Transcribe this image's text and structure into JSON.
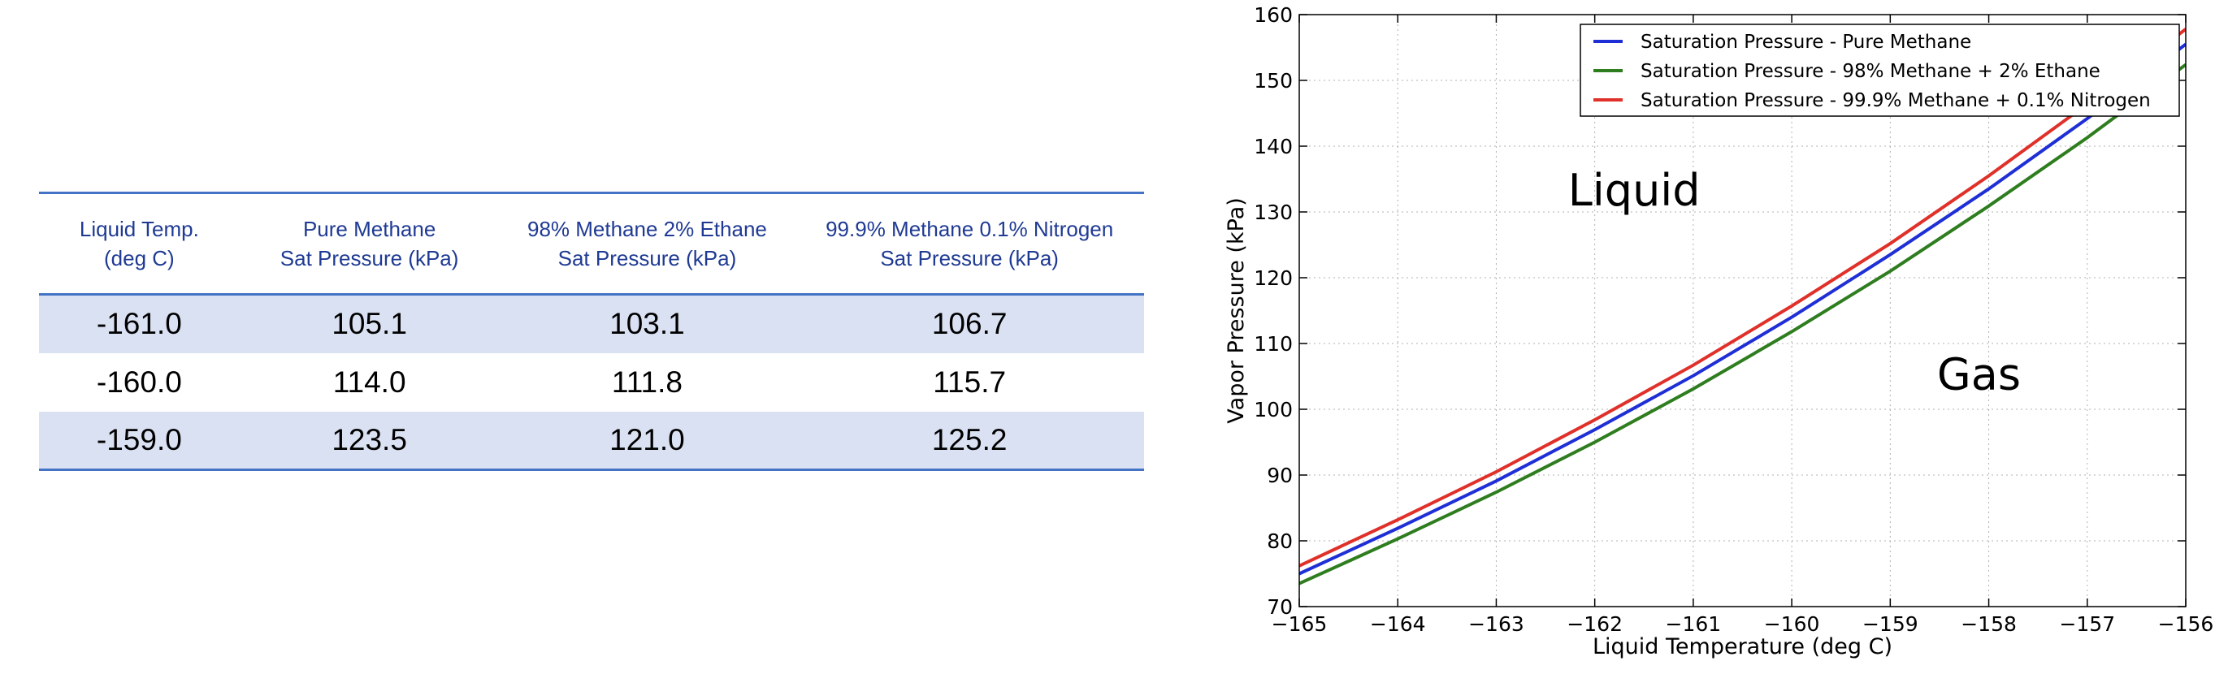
{
  "table": {
    "headers": [
      [
        "Liquid Temp.",
        "(deg C)"
      ],
      [
        "Pure Methane",
        "Sat Pressure (kPa)"
      ],
      [
        "98% Methane 2% Ethane",
        "Sat Pressure (kPa)"
      ],
      [
        "99.9% Methane 0.1% Nitrogen",
        "Sat Pressure (kPa)"
      ]
    ],
    "rows": [
      [
        "-161.0",
        "105.1",
        "103.1",
        "106.7"
      ],
      [
        "-160.0",
        "114.0",
        "111.8",
        "115.7"
      ],
      [
        "-159.0",
        "123.5",
        "121.0",
        "125.2"
      ]
    ],
    "header_color": "#1f3a93",
    "rule_color": "#4472c4",
    "band_color": "#dae1f2"
  },
  "chart_data": {
    "type": "line",
    "xlabel": "Liquid Temperature (deg C)",
    "ylabel": "Vapor Pressure (kPa)",
    "xlim": [
      -165,
      -156
    ],
    "ylim": [
      70,
      160
    ],
    "xticks": [
      -165,
      -164,
      -163,
      -162,
      -161,
      -160,
      -159,
      -158,
      -157,
      -156
    ],
    "xtick_labels": [
      "−165",
      "−164",
      "−163",
      "−162",
      "−161",
      "−160",
      "−159",
      "−158",
      "−157",
      "−156"
    ],
    "yticks": [
      70,
      80,
      90,
      100,
      110,
      120,
      130,
      140,
      150,
      160
    ],
    "ytick_labels": [
      "70",
      "80",
      "90",
      "100",
      "110",
      "120",
      "130",
      "140",
      "150",
      "160"
    ],
    "grid": true,
    "legend": "top-right",
    "x": [
      -165,
      -164,
      -163,
      -162,
      -161,
      -160,
      -159,
      -158,
      -157,
      -156
    ],
    "series": [
      {
        "name": "Saturation Pressure - Pure Methane",
        "color": "#1f2fd6",
        "values": [
          75.0,
          81.9,
          89.1,
          96.9,
          105.1,
          114.0,
          123.5,
          133.5,
          144.2,
          155.5
        ]
      },
      {
        "name": "Saturation Pressure - 98% Methane + 2% Ethane",
        "color": "#2e7d1f",
        "values": [
          73.5,
          80.3,
          87.4,
          95.0,
          103.1,
          111.8,
          121.0,
          130.9,
          141.3,
          152.4
        ]
      },
      {
        "name": "Saturation Pressure - 99.9% Methane + 0.1% Nitrogen",
        "color": "#e0302a",
        "values": [
          76.2,
          83.2,
          90.5,
          98.4,
          106.7,
          115.7,
          125.2,
          135.5,
          146.4,
          157.8
        ]
      }
    ],
    "annotations": [
      {
        "text": "Liquid",
        "x": -161.6,
        "y": 131
      },
      {
        "text": "Gas",
        "x": -158.1,
        "y": 103
      }
    ]
  }
}
